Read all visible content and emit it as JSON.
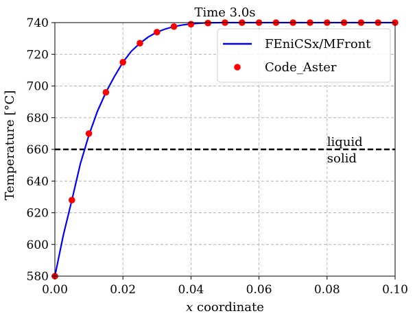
{
  "chart_data": {
    "type": "line",
    "title": "Time 3.0s",
    "xlabel": "x coordinate",
    "ylabel": "Temperature [°C]",
    "xlim": [
      0.0,
      0.1
    ],
    "ylim": [
      580,
      740
    ],
    "xticks": [
      "0.00",
      "0.02",
      "0.04",
      "0.06",
      "0.08",
      "0.10"
    ],
    "yticks": [
      "580",
      "600",
      "620",
      "640",
      "660",
      "680",
      "700",
      "720",
      "740"
    ],
    "grid": true,
    "legend_position": "top-right",
    "series": [
      {
        "name": "FEniCSx/MFront",
        "style": "line",
        "color": "#0000ff",
        "x": [
          0.0,
          0.0025,
          0.005,
          0.0075,
          0.01,
          0.0125,
          0.015,
          0.0175,
          0.02,
          0.0225,
          0.025,
          0.0275,
          0.03,
          0.0325,
          0.035,
          0.0375,
          0.04,
          0.0425,
          0.045,
          0.05,
          0.06,
          0.07,
          0.08,
          0.09,
          0.1
        ],
        "y": [
          580,
          606,
          628,
          651,
          669,
          684,
          696,
          706,
          715,
          722,
          727,
          731,
          734,
          736,
          737.5,
          738.5,
          739.2,
          739.6,
          739.9,
          740,
          740,
          740,
          740,
          740,
          740
        ]
      },
      {
        "name": "Code_Aster",
        "style": "markers",
        "color": "#ff0000",
        "x": [
          0.0,
          0.005,
          0.01,
          0.015,
          0.02,
          0.025,
          0.03,
          0.035,
          0.04,
          0.045,
          0.05,
          0.055,
          0.06,
          0.065,
          0.07,
          0.075,
          0.08,
          0.085,
          0.09,
          0.095,
          0.1
        ],
        "y": [
          580,
          628,
          670,
          696,
          715,
          727,
          734,
          737.5,
          739,
          739.7,
          740,
          740,
          740,
          740,
          740,
          740,
          740,
          740,
          740,
          740,
          740
        ]
      }
    ],
    "reference_line": {
      "y": 660,
      "style": "dashed",
      "color": "#000000"
    },
    "annotations": [
      {
        "text": "liquid",
        "x": 0.08,
        "y": 660,
        "position": "above"
      },
      {
        "text": "solid",
        "x": 0.08,
        "y": 660,
        "position": "below"
      }
    ]
  }
}
